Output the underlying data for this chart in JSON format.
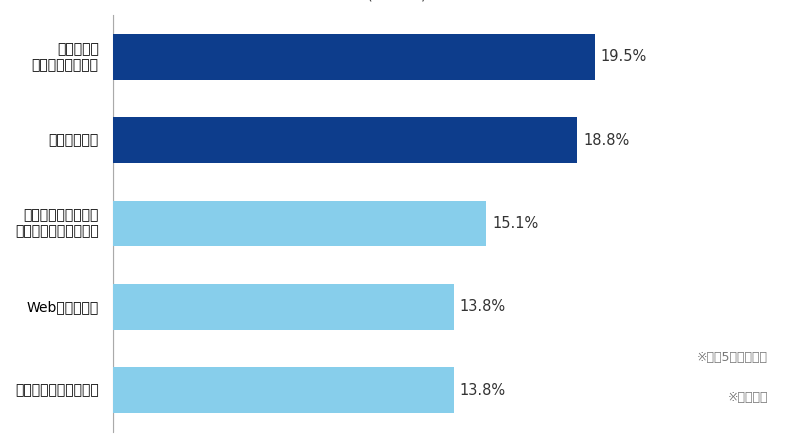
{
  "categories": [
    "歯科医院の\n公式ホームページ",
    "知人の口コミ",
    "これまで通っていた\n歯科医院のアドバイス",
    "Web上の口コミ",
    "歯科医院の比較サイト"
  ],
  "values": [
    19.5,
    18.8,
    15.1,
    13.8,
    13.8
  ],
  "labels": [
    "19.5%",
    "18.8%",
    "15.1%",
    "13.8%",
    "13.8%"
  ],
  "colors": [
    "#0d3d8c",
    "#0d3d8c",
    "#87ceeb",
    "#87ceeb",
    "#87ceeb"
  ],
  "note1": "※上位5項目を抜粋",
  "note2": "※複数回答",
  "background_color": "#ffffff",
  "bar_height": 0.55,
  "xlim": [
    0,
    23
  ],
  "title_fontsize": 16,
  "subtitle_fontsize": 10.5,
  "label_fontsize": 10.5,
  "ytick_fontsize": 10,
  "note_fontsize": 9
}
